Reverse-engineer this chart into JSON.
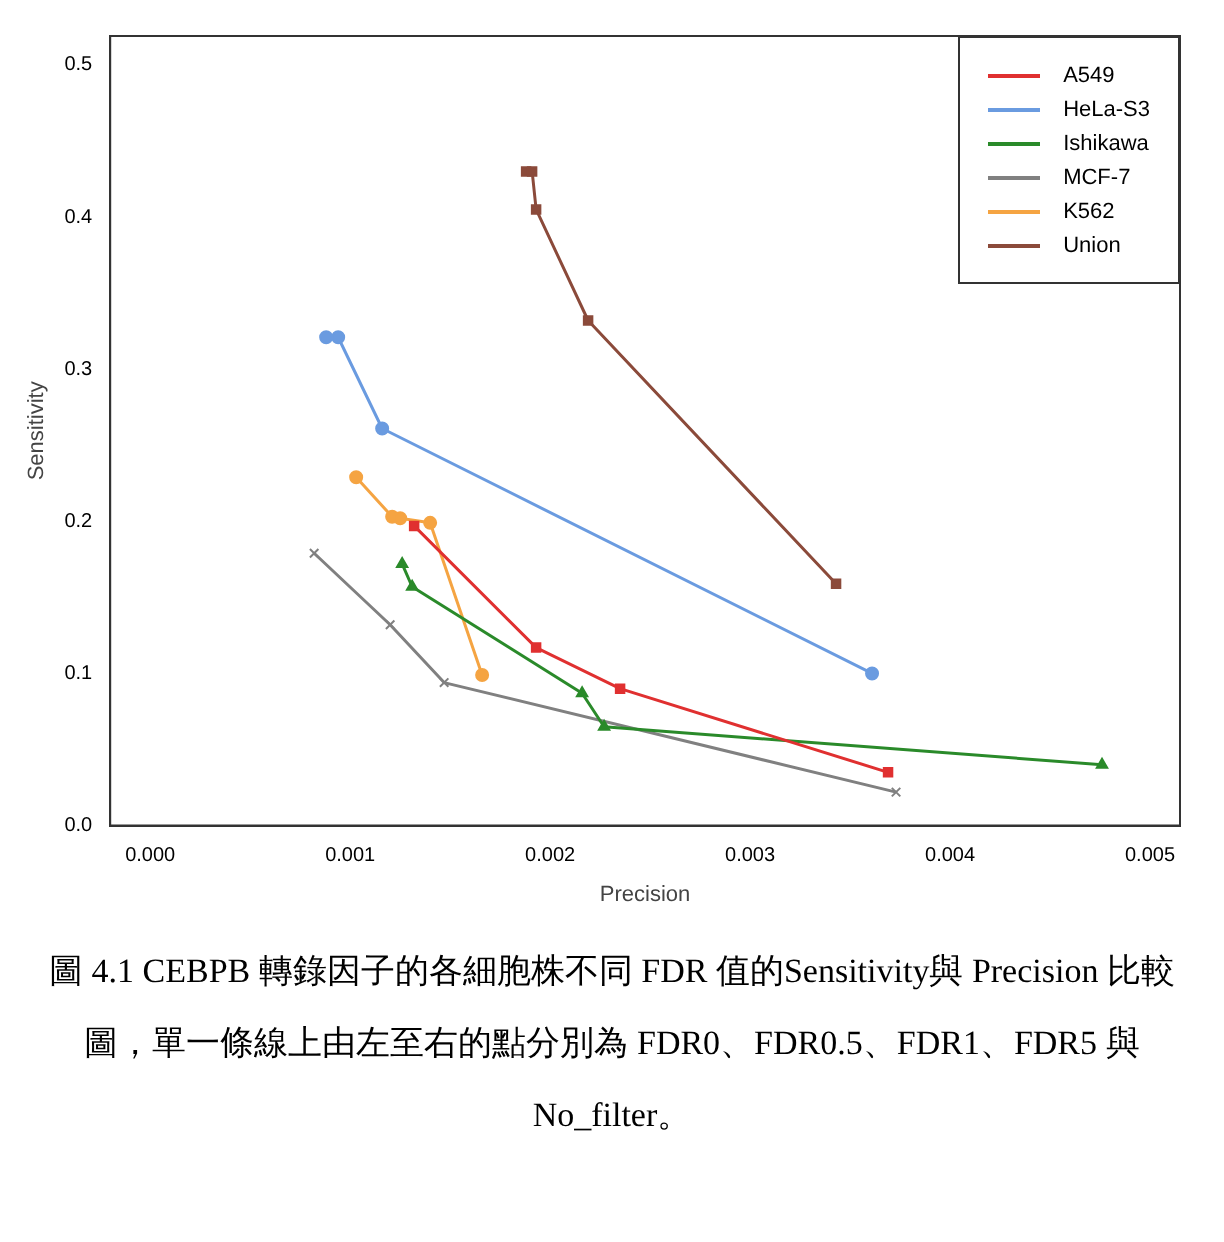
{
  "chart_data": {
    "type": "line",
    "xlabel": "Precision",
    "ylabel": "Sensitivity",
    "annotations": [
      "圖 4.1 CEBPB 轉錄因子的各細胞株不同 FDR 值的Sensitivity與 Precision 比較圖，單一條線上由左至右的點分別為 FDR0、FDR0.5、FDR1、FDR5 與 No_filter。"
    ],
    "xlim": [
      -0.0002,
      0.00515
    ],
    "ylim": [
      0,
      0.519
    ],
    "xticks": [
      {
        "value": 0,
        "label": "0.000"
      },
      0.001,
      0.002,
      0.003,
      0.004,
      0.005
    ],
    "yticks": [
      {
        "value": 0,
        "label": "0.0"
      },
      0.1,
      0.2,
      0.3,
      0.4,
      0.5
    ],
    "grid": false,
    "legend": "top right",
    "series": [
      {
        "name": "A549",
        "color": "#e03030",
        "marker": "square",
        "x": [
          0.00132,
          0.00193,
          0.00235,
          0.00369
        ],
        "values": [
          0.197,
          0.117,
          0.09,
          0.035
        ]
      },
      {
        "name": "HeLa-S3",
        "color": "#6a9be0",
        "marker": "circle",
        "x": [
          0.00088,
          0.00094,
          0.00116,
          0.00361
        ],
        "values": [
          0.321,
          0.321,
          0.261,
          0.1
        ]
      },
      {
        "name": "Ishikawa",
        "color": "#2a8a2a",
        "marker": "triangle",
        "x": [
          0.00126,
          0.00131,
          0.00216,
          0.00227,
          0.00476
        ],
        "values": [
          0.172,
          0.157,
          0.087,
          0.065,
          0.04
        ]
      },
      {
        "name": "MCF-7",
        "color": "#808080",
        "marker": "cross",
        "x": [
          0.00082,
          0.0012,
          0.00147,
          0.00373
        ],
        "values": [
          0.179,
          0.132,
          0.094,
          0.022
        ]
      },
      {
        "name": "K562",
        "color": "#f5a442",
        "marker": "circle",
        "x": [
          0.00103,
          0.00121,
          0.00125,
          0.0014,
          0.00166
        ],
        "values": [
          0.229,
          0.203,
          0.202,
          0.199,
          0.099
        ]
      },
      {
        "name": "Union",
        "color": "#8b4a3a",
        "marker": "square",
        "x": [
          0.00188,
          0.00191,
          0.00193,
          0.00219,
          0.00343
        ],
        "values": [
          0.43,
          0.43,
          0.405,
          0.332,
          0.159
        ]
      }
    ]
  }
}
